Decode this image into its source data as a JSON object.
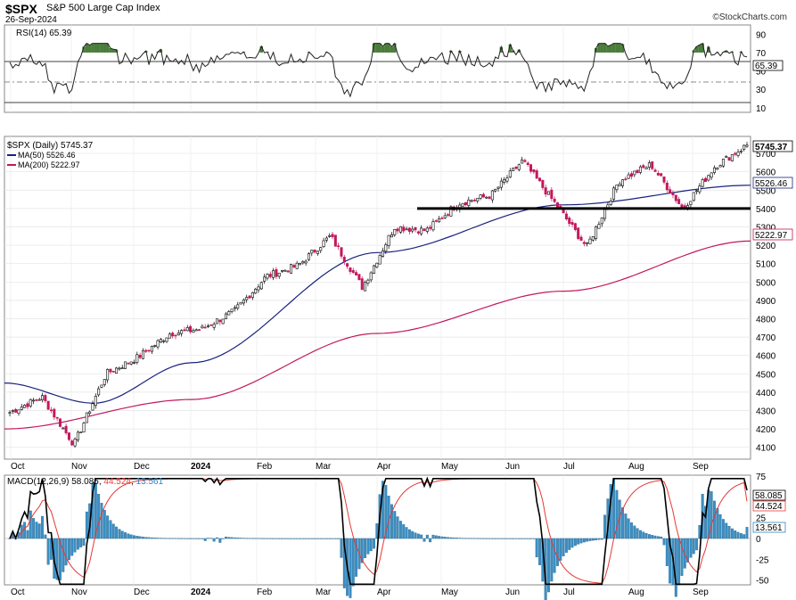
{
  "header": {
    "symbol": "$SPX",
    "name": "S&P 500 Large Cap Index",
    "date": "26-Sep-2024",
    "source": "©StockCharts.com"
  },
  "rsi_panel": {
    "label": "RSI(14) 65.39",
    "ticks": [
      "90",
      "70",
      "50",
      "30",
      "10"
    ],
    "value_label": "65.39",
    "overbought": 70,
    "oversold": 30
  },
  "price_panel": {
    "legend_main": "$SPX (Daily) 5745.37",
    "legend_ma50": "MA(50) 5526.46",
    "legend_ma200": "MA(200) 5222.97",
    "ticks": [
      "5700",
      "5600",
      "5500",
      "5400",
      "5300",
      "5200",
      "5100",
      "5000",
      "4900",
      "4800",
      "4700",
      "4600",
      "4500",
      "4400",
      "4300",
      "4200",
      "4100"
    ],
    "last_label": "5745.37",
    "ma50_label": "5526.46",
    "ma200_label": "5222.97",
    "support_level": 5400,
    "colors": {
      "ma50": "#1a237e",
      "ma200": "#c2185b",
      "up": "#000000",
      "down": "#c2185b",
      "support": "#000000"
    }
  },
  "macd_panel": {
    "label_prefix": "MACD(12,26,9)",
    "macd_value": "58.085",
    "signal_value": "44.524",
    "hist_value": "13.561",
    "ticks": [
      "75",
      "50",
      "25",
      "0",
      "-25",
      "-50"
    ],
    "colors": {
      "macd": "#000000",
      "signal": "#e53935",
      "hist": "#2e86c1"
    }
  },
  "x_axis": {
    "labels": [
      "Oct",
      "Nov",
      "Dec",
      "2024",
      "Feb",
      "Mar",
      "Apr",
      "May",
      "Jun",
      "Jul",
      "Aug",
      "Sep"
    ]
  },
  "chart_data": {
    "type": "line",
    "title": "$SPX S&P 500 Large Cap Index",
    "ylim": [
      4050,
      5780
    ],
    "price": {
      "dates": [
        "2023-10-02",
        "2023-10-16",
        "2023-10-27",
        "2023-11-15",
        "2023-12-01",
        "2023-12-15",
        "2024-01-02",
        "2024-01-19",
        "2024-02-09",
        "2024-02-29",
        "2024-03-28",
        "2024-04-19",
        "2024-05-15",
        "2024-05-31",
        "2024-06-14",
        "2024-07-01",
        "2024-07-16",
        "2024-07-24",
        "2024-08-05",
        "2024-08-15",
        "2024-08-30",
        "2024-09-06",
        "2024-09-16",
        "2024-09-26"
      ],
      "close": [
        4290,
        4375,
        4115,
        4500,
        4590,
        4720,
        4745,
        4840,
        5030,
        5090,
        5250,
        4970,
        5300,
        5280,
        5430,
        5470,
        5660,
        5430,
        5190,
        5550,
        5640,
        5400,
        5630,
        5745.37
      ]
    },
    "ma50": {
      "x": [
        0,
        0.12,
        0.25,
        0.5,
        0.75,
        1.0
      ],
      "values": [
        4450,
        4340,
        4560,
        5160,
        5420,
        5526.46
      ]
    },
    "ma200": {
      "x": [
        0,
        0.25,
        0.5,
        0.75,
        1.0
      ],
      "values": [
        4200,
        4360,
        4720,
        4950,
        5222.97
      ]
    },
    "rsi": {
      "last": 65.39
    },
    "macd": {
      "macd": 58.085,
      "signal": 44.524,
      "histogram": 13.561
    }
  }
}
